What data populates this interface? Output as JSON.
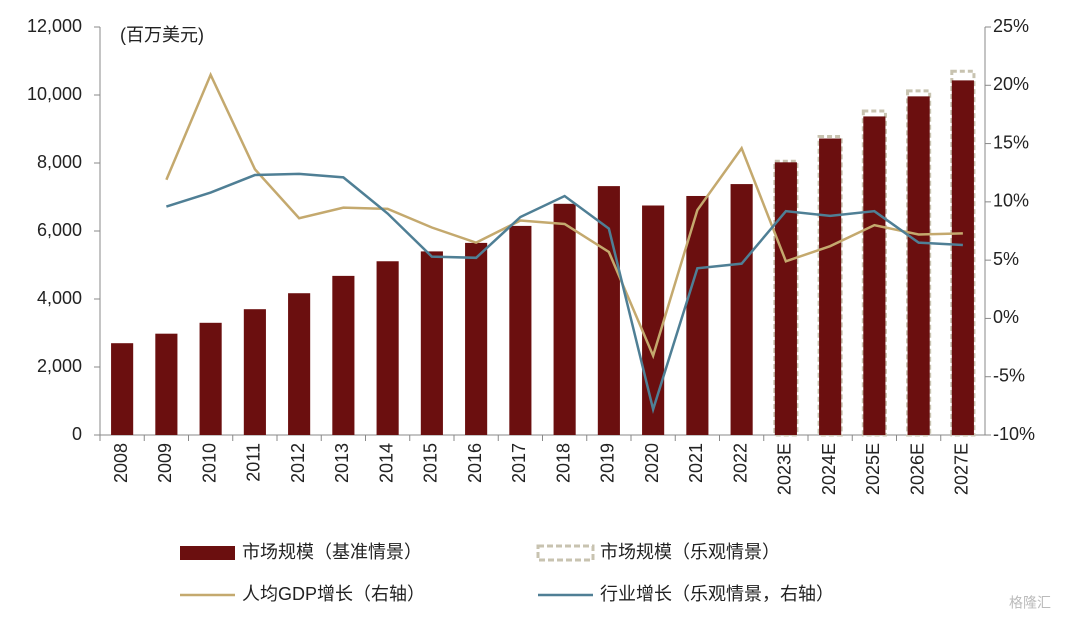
{
  "chart_data": {
    "type": "bar",
    "unit_label": "(百万美元)",
    "watermark": "格隆汇",
    "categories": [
      "2008",
      "2009",
      "2010",
      "2011",
      "2012",
      "2013",
      "2014",
      "2015",
      "2016",
      "2017",
      "2018",
      "2019",
      "2020",
      "2021",
      "2022",
      "2023E",
      "2024E",
      "2025E",
      "2026E",
      "2027E"
    ],
    "ylim": [
      0,
      12000
    ],
    "yticks": [
      0,
      {
        "value": 2000,
        "label": "2,000"
      },
      {
        "value": 4000,
        "label": "4,000"
      },
      {
        "value": 6000,
        "label": "6,000"
      },
      {
        "value": 8000,
        "label": "8,000"
      },
      {
        "value": 10000,
        "label": "10,000"
      },
      {
        "value": 12000,
        "label": "12,000"
      }
    ],
    "y2lim": [
      -10,
      25
    ],
    "y2ticks": [
      {
        "value": -10,
        "label": "-10%"
      },
      {
        "value": -5,
        "label": "-5%"
      },
      {
        "value": 0,
        "label": "0%"
      },
      {
        "value": 5,
        "label": "5%"
      },
      {
        "value": 10,
        "label": "10%"
      },
      {
        "value": 15,
        "label": "15%"
      },
      {
        "value": 20,
        "label": "20%"
      },
      {
        "value": 25,
        "label": "25%"
      }
    ],
    "series": [
      {
        "name": "市场规模（乐观情景）",
        "type": "bar",
        "dash": true,
        "color": "#c8c3b0",
        "values": [
          null,
          null,
          null,
          null,
          null,
          null,
          null,
          null,
          null,
          null,
          null,
          null,
          null,
          null,
          null,
          8050,
          8780,
          9530,
          10120,
          10700
        ]
      },
      {
        "name": "市场规模（基准情景）",
        "type": "bar",
        "color": "#6b0f0f",
        "values": [
          2700,
          2980,
          3300,
          3700,
          4170,
          4680,
          5110,
          5400,
          5650,
          6150,
          6800,
          7320,
          6750,
          7030,
          7380,
          8020,
          8720,
          9370,
          9960,
          10430
        ]
      },
      {
        "name": "人均GDP增长（右轴）",
        "type": "line",
        "axis": "y2",
        "color": "#c4a96e",
        "values": [
          null,
          11.9,
          20.9,
          12.8,
          8.6,
          9.5,
          9.4,
          7.8,
          6.5,
          8.4,
          8.1,
          5.7,
          -3.2,
          9.3,
          14.6,
          4.9,
          6.2,
          8.0,
          7.2,
          7.3
        ]
      },
      {
        "name": "行业增长（乐观情景，右轴）",
        "type": "line",
        "axis": "y2",
        "color": "#4f7f95",
        "values": [
          null,
          9.6,
          10.8,
          12.3,
          12.4,
          12.1,
          9.0,
          5.3,
          5.2,
          8.7,
          10.5,
          7.7,
          -7.8,
          4.3,
          4.7,
          9.2,
          8.8,
          9.2,
          6.5,
          6.3
        ]
      }
    ]
  }
}
